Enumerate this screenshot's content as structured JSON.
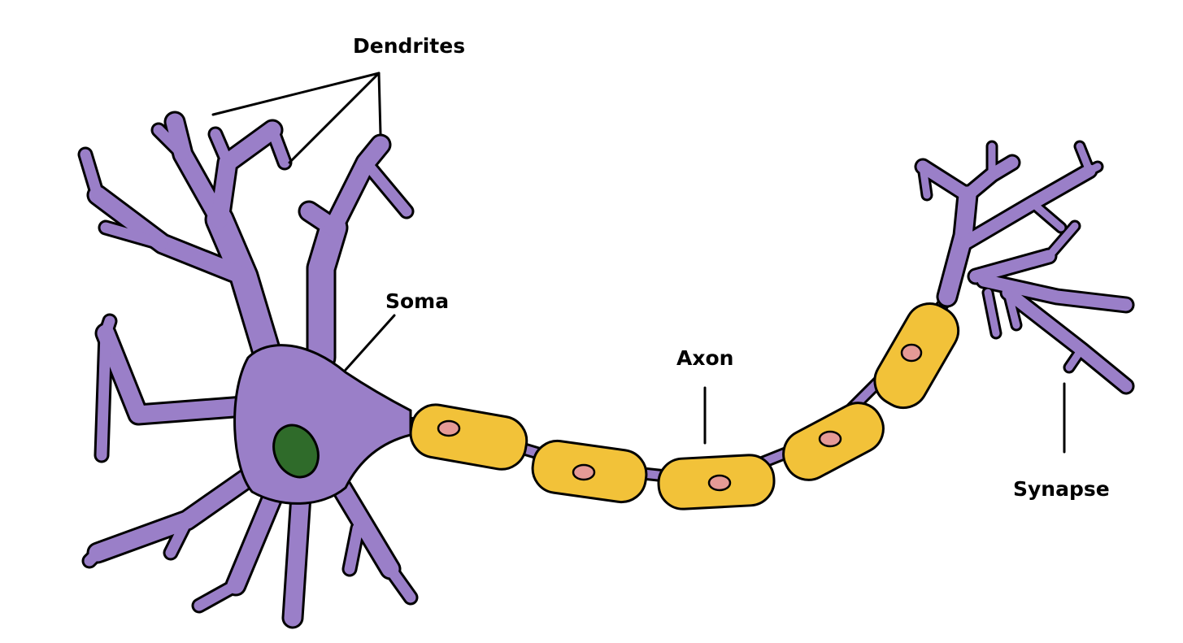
{
  "labels": {
    "dendrites": "Dendrites",
    "soma": "Soma",
    "axon": "Axon",
    "synapse": "Synapse"
  },
  "colors": {
    "neuron_body": "#9a7fc8",
    "myelin_sheath": "#f2c239",
    "node_nucleus": "#e59a96",
    "soma_nucleus": "#2f6b2a",
    "outline": "#000000",
    "background": "#ffffff"
  }
}
